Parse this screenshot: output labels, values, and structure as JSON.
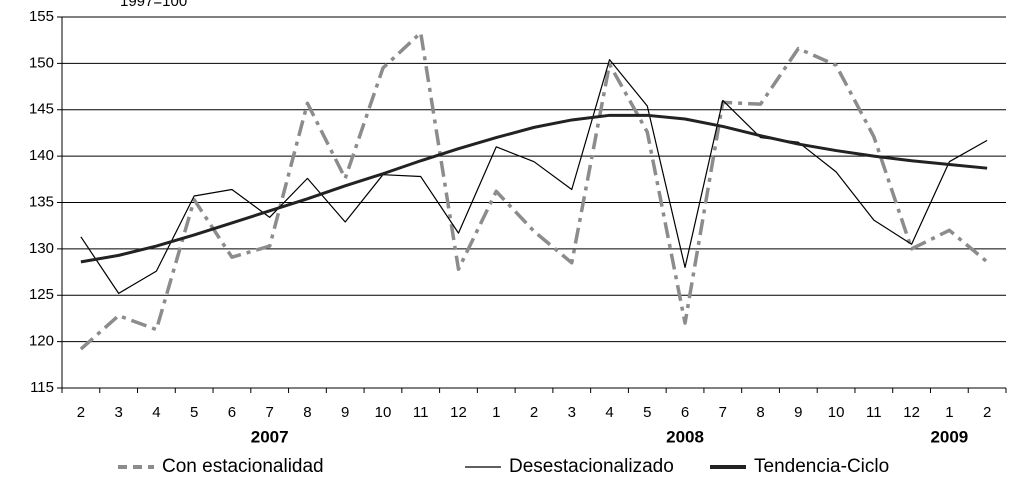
{
  "chart_data": {
    "type": "line",
    "subtitle": "1997=100",
    "categories": [
      "2",
      "3",
      "4",
      "5",
      "6",
      "7",
      "8",
      "9",
      "10",
      "11",
      "12",
      "1",
      "2",
      "3",
      "4",
      "5",
      "6",
      "7",
      "8",
      "9",
      "10",
      "11",
      "12",
      "1",
      "2"
    ],
    "x_group_labels": [
      null,
      null,
      null,
      null,
      null,
      "2007",
      null,
      null,
      null,
      null,
      null,
      null,
      null,
      null,
      null,
      null,
      "2008",
      null,
      null,
      null,
      null,
      null,
      null,
      "2009",
      null
    ],
    "series": [
      {
        "name": "Con estacionalidad",
        "color": "#8c8c8c",
        "style": "dashed",
        "values": [
          119.2,
          122.8,
          121.3,
          135.3,
          129.1,
          130.3,
          145.7,
          137.6,
          149.5,
          153.3,
          127.8,
          136.2,
          131.9,
          128.5,
          149.9,
          142.6,
          122.0,
          145.8,
          145.6,
          151.6,
          149.8,
          142.1,
          130.0,
          132.0,
          128.6
        ]
      },
      {
        "name": "Desestacionalizado",
        "color": "#000000",
        "style": "thin",
        "values": [
          131.3,
          125.2,
          127.6,
          135.7,
          136.4,
          133.4,
          137.6,
          132.9,
          138.0,
          137.8,
          131.7,
          141.0,
          139.4,
          136.4,
          150.4,
          145.4,
          128.0,
          146.0,
          142.0,
          141.5,
          138.3,
          133.1,
          130.5,
          139.4,
          141.7
        ]
      },
      {
        "name": "Tendencia-Ciclo",
        "color": "#222222",
        "style": "thick",
        "values": [
          128.6,
          129.3,
          130.3,
          131.5,
          132.8,
          134.1,
          135.4,
          136.8,
          138.1,
          139.5,
          140.8,
          142.0,
          143.1,
          143.9,
          144.4,
          144.4,
          144.0,
          143.2,
          142.2,
          141.3,
          140.6,
          140.0,
          139.5,
          139.1,
          138.7
        ]
      }
    ],
    "ylim": [
      115,
      155
    ],
    "yticks": [
      115,
      120,
      125,
      130,
      135,
      140,
      145,
      150,
      155
    ],
    "grid": true,
    "legend": "bottom"
  }
}
